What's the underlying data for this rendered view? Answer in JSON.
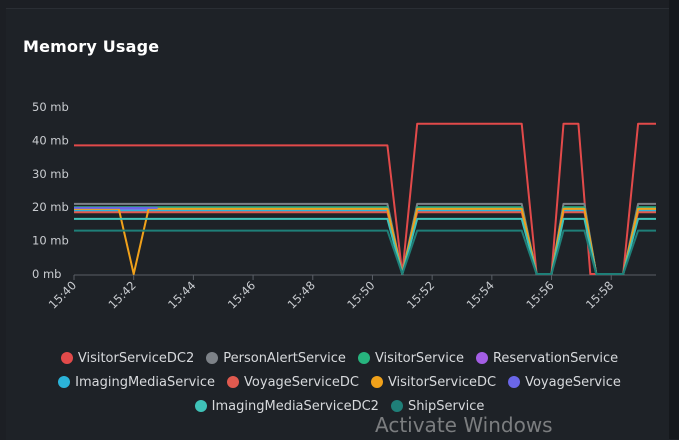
{
  "panel": {
    "title": "Memory Usage"
  },
  "chart_data": {
    "type": "line",
    "ylabel": "",
    "xlabel": "",
    "y_ticks": [
      "0 mb",
      "10 mb",
      "20 mb",
      "30 mb",
      "40 mb",
      "50 mb"
    ],
    "ylim": [
      0,
      50
    ],
    "x_ticks": [
      "15:40",
      "15:42",
      "15:44",
      "15:46",
      "15:48",
      "15:50",
      "15:52",
      "15:54",
      "15:56",
      "15:58"
    ],
    "xlim": [
      "15:40",
      "15:59.5"
    ],
    "grid": false,
    "legend_position": "bottom",
    "series": [
      {
        "name": "VisitorServiceDC2",
        "color": "#e24a4a",
        "points": [
          [
            "15:40",
            38.5
          ],
          [
            "15:50.5",
            38.5
          ],
          [
            "15:51",
            0
          ],
          [
            "15:51.5",
            45
          ],
          [
            "15:55",
            45
          ],
          [
            "15:55.5",
            0
          ],
          [
            "15:56",
            0
          ],
          [
            "15:56.4",
            45
          ],
          [
            "15:56.9",
            45
          ],
          [
            "15:57.3",
            0
          ],
          [
            "15:58.4",
            0
          ],
          [
            "15:58.9",
            45
          ],
          [
            "15:59.5",
            45
          ]
        ]
      },
      {
        "name": "PersonAlertService",
        "color": "#7d8288",
        "points": [
          [
            "15:40",
            21
          ],
          [
            "15:50.5",
            21
          ],
          [
            "15:51",
            0
          ],
          [
            "15:51.5",
            21
          ],
          [
            "15:55",
            21
          ],
          [
            "15:55.5",
            0
          ],
          [
            "15:56",
            0
          ],
          [
            "15:56.4",
            21
          ],
          [
            "15:57.1",
            21
          ],
          [
            "15:57.5",
            0
          ],
          [
            "15:58.4",
            0
          ],
          [
            "15:58.9",
            21
          ],
          [
            "15:59.5",
            21
          ]
        ]
      },
      {
        "name": "VisitorService",
        "color": "#27b47e",
        "points": [
          [
            "15:40",
            20
          ],
          [
            "15:50.5",
            20
          ],
          [
            "15:51",
            0
          ],
          [
            "15:51.5",
            20
          ],
          [
            "15:55",
            20
          ],
          [
            "15:55.5",
            0
          ],
          [
            "15:56",
            0
          ],
          [
            "15:56.4",
            20
          ],
          [
            "15:57.1",
            20
          ],
          [
            "15:57.5",
            0
          ],
          [
            "15:58.4",
            0
          ],
          [
            "15:58.9",
            20
          ],
          [
            "15:59.5",
            20
          ]
        ]
      },
      {
        "name": "ReservationService",
        "color": "#a45ee5",
        "points": [
          [
            "15:40",
            19.5
          ],
          [
            "15:50.5",
            19.5
          ],
          [
            "15:51",
            0
          ],
          [
            "15:51.5",
            19.5
          ],
          [
            "15:55",
            19.5
          ],
          [
            "15:55.5",
            0
          ],
          [
            "15:56",
            0
          ],
          [
            "15:56.4",
            19.5
          ],
          [
            "15:57.1",
            19.5
          ],
          [
            "15:57.5",
            0
          ],
          [
            "15:58.4",
            0
          ],
          [
            "15:58.9",
            19.5
          ],
          [
            "15:59.5",
            19.5
          ]
        ]
      },
      {
        "name": "ImagingMediaService",
        "color": "#2bb3d9",
        "points": [
          [
            "15:40",
            19
          ],
          [
            "15:50.5",
            19
          ],
          [
            "15:51",
            0
          ],
          [
            "15:51.5",
            19
          ],
          [
            "15:55",
            19
          ],
          [
            "15:55.5",
            0
          ],
          [
            "15:56",
            0
          ],
          [
            "15:56.4",
            19
          ],
          [
            "15:57.1",
            19
          ],
          [
            "15:57.5",
            0
          ],
          [
            "15:58.4",
            0
          ],
          [
            "15:58.9",
            19
          ],
          [
            "15:59.5",
            19
          ]
        ]
      },
      {
        "name": "VoyageServiceDC",
        "color": "#e05a4f",
        "points": [
          [
            "15:40",
            18.5
          ],
          [
            "15:50.5",
            18.5
          ],
          [
            "15:51",
            0
          ],
          [
            "15:51.5",
            18.5
          ],
          [
            "15:55",
            18.5
          ],
          [
            "15:55.5",
            0
          ],
          [
            "15:56",
            0
          ],
          [
            "15:56.4",
            18.5
          ],
          [
            "15:57.1",
            18.5
          ],
          [
            "15:57.5",
            0
          ],
          [
            "15:58.4",
            0
          ],
          [
            "15:58.9",
            18.5
          ],
          [
            "15:59.5",
            18.5
          ]
        ]
      },
      {
        "name": "VisitorServiceDC",
        "color": "#f0a11a",
        "points": [
          [
            "15:40",
            19.5
          ],
          [
            "15:41.5",
            19.5
          ],
          [
            "15:42",
            0
          ],
          [
            "15:42.5",
            19.5
          ],
          [
            "15:50.5",
            19.5
          ],
          [
            "15:51",
            0
          ],
          [
            "15:51.5",
            19.5
          ],
          [
            "15:55",
            19.5
          ],
          [
            "15:55.5",
            0
          ],
          [
            "15:56",
            0
          ],
          [
            "15:56.4",
            19.5
          ],
          [
            "15:57.1",
            19.5
          ],
          [
            "15:57.5",
            0
          ],
          [
            "15:58.4",
            0
          ],
          [
            "15:58.9",
            19.5
          ],
          [
            "15:59.5",
            19.5
          ]
        ]
      },
      {
        "name": "VoyageService",
        "color": "#6a66e8",
        "points": [
          [
            "15:40",
            19.8
          ],
          [
            "15:42.8",
            19.8
          ]
        ]
      },
      {
        "name": "ImagingMediaServiceDC2",
        "color": "#3fc2b8",
        "points": [
          [
            "15:40",
            16.5
          ],
          [
            "15:50.5",
            16.5
          ],
          [
            "15:51",
            0
          ],
          [
            "15:51.5",
            16.5
          ],
          [
            "15:55",
            16.5
          ],
          [
            "15:55.5",
            0
          ],
          [
            "15:56",
            0
          ],
          [
            "15:56.4",
            16.5
          ],
          [
            "15:57.1",
            16.5
          ],
          [
            "15:57.5",
            0
          ],
          [
            "15:58.4",
            0
          ],
          [
            "15:58.9",
            16.5
          ],
          [
            "15:59.5",
            16.5
          ]
        ]
      },
      {
        "name": "ShipService",
        "color": "#1f7f78",
        "points": [
          [
            "15:40",
            13
          ],
          [
            "15:50.5",
            13
          ],
          [
            "15:51",
            0
          ],
          [
            "15:51.5",
            13
          ],
          [
            "15:55",
            13
          ],
          [
            "15:55.5",
            0
          ],
          [
            "15:56",
            0
          ],
          [
            "15:56.4",
            13
          ],
          [
            "15:57.1",
            13
          ],
          [
            "15:57.5",
            0
          ],
          [
            "15:58.4",
            0
          ],
          [
            "15:58.9",
            13
          ],
          [
            "15:59.5",
            13
          ]
        ]
      }
    ]
  },
  "legend_rows": [
    [
      0,
      1,
      2,
      3
    ],
    [
      4,
      5,
      6,
      7
    ],
    [
      8,
      9
    ]
  ],
  "watermark": "Activate Windows"
}
